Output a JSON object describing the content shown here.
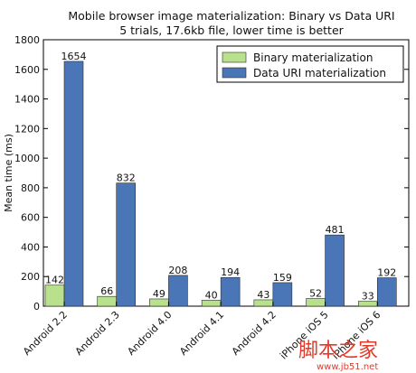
{
  "chart_data": {
    "type": "bar",
    "title": "Mobile browser image materialization: Binary vs Data URI",
    "subtitle": "5 trials, 17.6kb file, lower time is better",
    "xlabel": "",
    "ylabel": "Mean time (ms)",
    "ylim": [
      0,
      1800
    ],
    "yticks": [
      0,
      200,
      400,
      600,
      800,
      1000,
      1200,
      1400,
      1600,
      1800
    ],
    "categories": [
      "Android 2.2",
      "Android 2.3",
      "Android 4.0",
      "Android 4.1",
      "Android 4.2",
      "iPhone iOS 5",
      "iPhone iOS 6"
    ],
    "series": [
      {
        "name": "Binary materialization",
        "color": "#b9e08c",
        "values": [
          142,
          66,
          49,
          40,
          43,
          52,
          33
        ]
      },
      {
        "name": "Data URI materialization",
        "color": "#4a76b8",
        "values": [
          1654,
          832,
          208,
          194,
          159,
          481,
          192
        ]
      }
    ],
    "legend_position": "top-right",
    "grid": false
  },
  "watermark": {
    "text": "脚本之家",
    "url": "www.jb51.net"
  }
}
